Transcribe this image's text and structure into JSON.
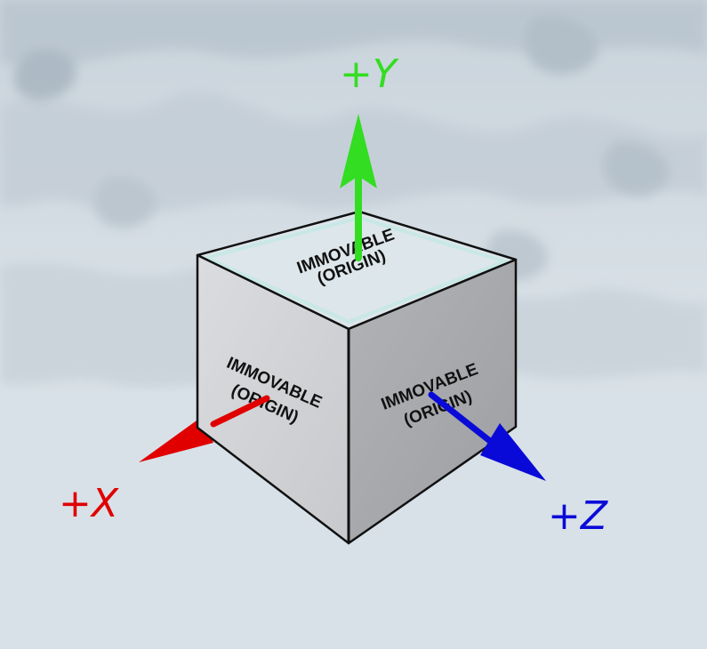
{
  "cube": {
    "top_face": {
      "line1": "IMMOVABLE",
      "line2": "(ORIGIN)"
    },
    "left_face": {
      "line1": "IMMOVABLE",
      "line2": "(ORIGIN)"
    },
    "right_face": {
      "line1": "IMMOVABLE",
      "line2": "(ORIGIN)"
    }
  },
  "axes": {
    "x": {
      "label": "+X",
      "color": "#e00000"
    },
    "y": {
      "label": "+Y",
      "color": "#33dd22"
    },
    "z": {
      "label": "+Z",
      "color": "#0a0ad8"
    }
  },
  "colors": {
    "cube_left_face": "#d4d6d9",
    "cube_right_face": "#a8aaae",
    "cube_top_face": "#dde6ea",
    "cube_edge": "#111111",
    "snow_background": "#dfe6ec"
  }
}
